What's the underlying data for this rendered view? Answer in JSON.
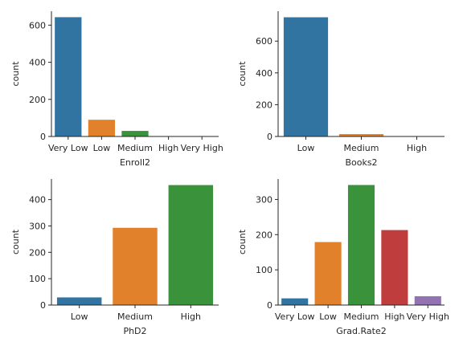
{
  "colors": {
    "palette": [
      "#3274a1",
      "#e1812c",
      "#3a923a",
      "#c03d3e",
      "#9372b2"
    ],
    "axis": "#262626"
  },
  "chart_data": [
    {
      "type": "bar",
      "xlabel": "Enroll2",
      "ylabel": "count",
      "categories": [
        "Very Low",
        "Low",
        "Medium",
        "High",
        "Very High"
      ],
      "values": [
        643,
        90,
        30,
        0,
        0
      ],
      "ylim": [
        0,
        675
      ],
      "yticks": [
        0,
        200,
        400,
        600
      ],
      "grid": false
    },
    {
      "type": "bar",
      "xlabel": "Books2",
      "ylabel": "count",
      "categories": [
        "Low",
        "Medium",
        "High"
      ],
      "values": [
        750,
        15,
        1
      ],
      "ylim": [
        0,
        788
      ],
      "yticks": [
        0,
        200,
        400,
        600
      ],
      "grid": false
    },
    {
      "type": "bar",
      "xlabel": "PhD2",
      "ylabel": "count",
      "categories": [
        "Low",
        "Medium",
        "High"
      ],
      "values": [
        29,
        293,
        455
      ],
      "ylim": [
        0,
        478
      ],
      "yticks": [
        0,
        100,
        200,
        300,
        400
      ],
      "grid": false
    },
    {
      "type": "bar",
      "xlabel": "Grad.Rate2",
      "ylabel": "count",
      "categories": [
        "Very Low",
        "Low",
        "Medium",
        "High",
        "Very High"
      ],
      "values": [
        19,
        179,
        341,
        213,
        25
      ],
      "ylim": [
        0,
        358
      ],
      "yticks": [
        0,
        100,
        200,
        300
      ],
      "grid": false
    }
  ]
}
